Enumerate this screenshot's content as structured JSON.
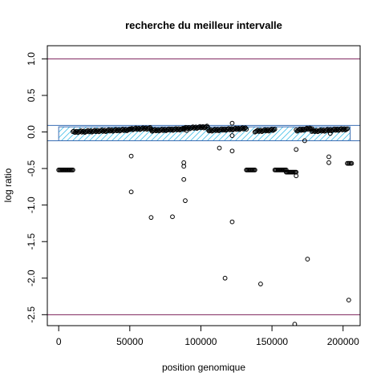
{
  "chart_data": {
    "type": "scatter",
    "title": "recherche du meilleur intervalle",
    "xlabel": "position genomique",
    "ylabel": "log ratio",
    "xlim": [
      -8000,
      212000
    ],
    "ylim": [
      -2.65,
      1.18
    ],
    "xticks": [
      {
        "value": 0,
        "label": "0"
      },
      {
        "value": 50000,
        "label": "50000"
      },
      {
        "value": 100000,
        "label": "100000"
      },
      {
        "value": 150000,
        "label": "150000"
      },
      {
        "value": 200000,
        "label": "200000"
      }
    ],
    "yticks": [
      {
        "value": 1.0,
        "label": "1.0"
      },
      {
        "value": 0.5,
        "label": "0.5"
      },
      {
        "value": 0.0,
        "label": "0.0"
      },
      {
        "value": -0.5,
        "label": "-0.5"
      },
      {
        "value": -1.0,
        "label": "-1.0"
      },
      {
        "value": -1.5,
        "label": "-1.5"
      },
      {
        "value": -2.0,
        "label": "-2.0"
      },
      {
        "value": -2.5,
        "label": "-2.5"
      }
    ],
    "hlines": [
      {
        "y": 1.0,
        "color": "#7b1f5a"
      },
      {
        "y": 0.09,
        "color": "#3c6fb4"
      },
      {
        "y": -0.12,
        "color": "#3c6fb4"
      },
      {
        "y": -2.5,
        "color": "#7b1f5a"
      }
    ],
    "interval": {
      "x": [
        0,
        205000
      ],
      "y": [
        -0.12,
        0.07
      ],
      "border_color": "#3c6fb4",
      "hatch_color": "#4fc3e8"
    },
    "segments": [
      {
        "x0": 0,
        "x1": 10000,
        "y0": -0.52,
        "y1": -0.52
      },
      {
        "x0": 10000,
        "x1": 50000,
        "y0": 0.0,
        "y1": 0.03
      },
      {
        "x0": 50000,
        "x1": 65000,
        "y0": 0.04,
        "y1": 0.05
      },
      {
        "x0": 65000,
        "x1": 88000,
        "y0": 0.02,
        "y1": 0.04
      },
      {
        "x0": 88000,
        "x1": 105000,
        "y0": 0.05,
        "y1": 0.07
      },
      {
        "x0": 105000,
        "x1": 132000,
        "y0": 0.02,
        "y1": 0.05
      },
      {
        "x0": 132000,
        "x1": 138000,
        "y0": -0.52,
        "y1": -0.52
      },
      {
        "x0": 138000,
        "x1": 152000,
        "y0": 0.01,
        "y1": 0.03
      },
      {
        "x0": 152000,
        "x1": 160000,
        "y0": -0.52,
        "y1": -0.52
      },
      {
        "x0": 160000,
        "x1": 167000,
        "y0": -0.55,
        "y1": -0.55
      },
      {
        "x0": 167000,
        "x1": 178000,
        "y0": 0.02,
        "y1": 0.05
      },
      {
        "x0": 178000,
        "x1": 203000,
        "y0": 0.01,
        "y1": 0.04
      },
      {
        "x0": 203000,
        "x1": 206000,
        "y0": -0.43,
        "y1": -0.43
      }
    ],
    "outliers": [
      {
        "x": 51000,
        "y": -0.33
      },
      {
        "x": 51000,
        "y": -0.82
      },
      {
        "x": 65000,
        "y": -1.17
      },
      {
        "x": 80000,
        "y": -1.16
      },
      {
        "x": 88000,
        "y": -0.42
      },
      {
        "x": 88000,
        "y": -0.47
      },
      {
        "x": 88000,
        "y": -0.65
      },
      {
        "x": 89000,
        "y": -0.94
      },
      {
        "x": 90000,
        "y": 0.02
      },
      {
        "x": 113000,
        "y": -0.22
      },
      {
        "x": 117000,
        "y": -2.0
      },
      {
        "x": 122000,
        "y": 0.12
      },
      {
        "x": 122000,
        "y": -0.05
      },
      {
        "x": 122000,
        "y": -0.26
      },
      {
        "x": 122000,
        "y": -1.23
      },
      {
        "x": 142000,
        "y": -2.08
      },
      {
        "x": 167000,
        "y": -0.24
      },
      {
        "x": 167000,
        "y": -0.6
      },
      {
        "x": 166000,
        "y": -2.63
      },
      {
        "x": 173000,
        "y": -0.12
      },
      {
        "x": 175000,
        "y": -1.74
      },
      {
        "x": 190000,
        "y": -0.34
      },
      {
        "x": 190000,
        "y": -0.42
      },
      {
        "x": 191000,
        "y": -0.02
      },
      {
        "x": 204000,
        "y": -2.3
      }
    ]
  }
}
